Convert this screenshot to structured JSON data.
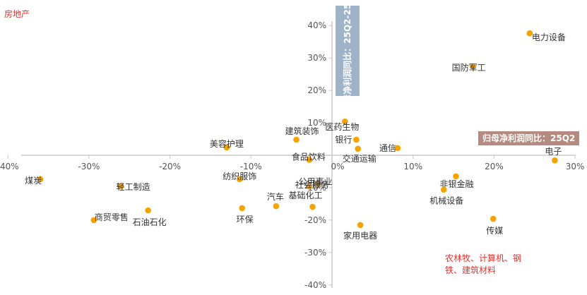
{
  "notes": {
    "corner": "房地产",
    "bottom": "农林牧、计算机、钢铁、建筑材料"
  },
  "chart_data": {
    "type": "scatter",
    "xlabel": "归母净利润同比：25Q2",
    "ylabel": "归母净利润同比：25Q2-25Q1",
    "xlim": [
      -40,
      30
    ],
    "ylim": [
      -40,
      40
    ],
    "x_ticks": [
      "-40%",
      "-30%",
      "-20%",
      "-10%",
      "0%",
      "10%",
      "20%",
      "30%"
    ],
    "y_ticks": [
      "40%",
      "30%",
      "20%",
      "10%",
      "0%",
      "-10%",
      "-20%",
      "-30%",
      "-40%"
    ],
    "marker_color": "#f5a300",
    "points": [
      {
        "label": "电力设备",
        "x": 24.4,
        "y": 37.6
      },
      {
        "label": "国防军工",
        "x": 17.4,
        "y": 27.4
      },
      {
        "label": "医药生物",
        "x": 1.6,
        "y": 10.4
      },
      {
        "label": "建筑装饰",
        "x": -4.4,
        "y": 4.8
      },
      {
        "label": "美容护理",
        "x": -13.0,
        "y": 2.4
      },
      {
        "label": "银行",
        "x": 3.0,
        "y": 4.8
      },
      {
        "label": "食品饮料",
        "x": -2.8,
        "y": -1.4
      },
      {
        "label": "交通运输",
        "x": 3.2,
        "y": 2.0
      },
      {
        "label": "通信",
        "x": 8.1,
        "y": 2.2
      },
      {
        "label": "电子",
        "x": 27.5,
        "y": -1.6
      },
      {
        "label": "煤炭",
        "x": -36.0,
        "y": -7.4
      },
      {
        "label": "轻工制造",
        "x": -26.1,
        "y": -9.6
      },
      {
        "label": "纺织服饰",
        "x": -11.4,
        "y": -7.4
      },
      {
        "label": "公用事业",
        "x": -1.7,
        "y": -8.8
      },
      {
        "label": "社会服务",
        "x": -2.8,
        "y": -9.6
      },
      {
        "label": "非银金融",
        "x": 15.3,
        "y": -6.5
      },
      {
        "label": "机械设备",
        "x": 13.8,
        "y": -10.6
      },
      {
        "label": "汽车",
        "x": -6.9,
        "y": -15.7
      },
      {
        "label": "基础化工",
        "x": -2.4,
        "y": -15.9
      },
      {
        "label": "环保",
        "x": -11.1,
        "y": -16.3
      },
      {
        "label": "石油石化",
        "x": -22.7,
        "y": -17.0
      },
      {
        "label": "商贸零售",
        "x": -29.4,
        "y": -20.0
      },
      {
        "label": "家用电器",
        "x": 3.5,
        "y": -21.5
      },
      {
        "label": "传媒",
        "x": 19.9,
        "y": -19.6
      }
    ]
  }
}
